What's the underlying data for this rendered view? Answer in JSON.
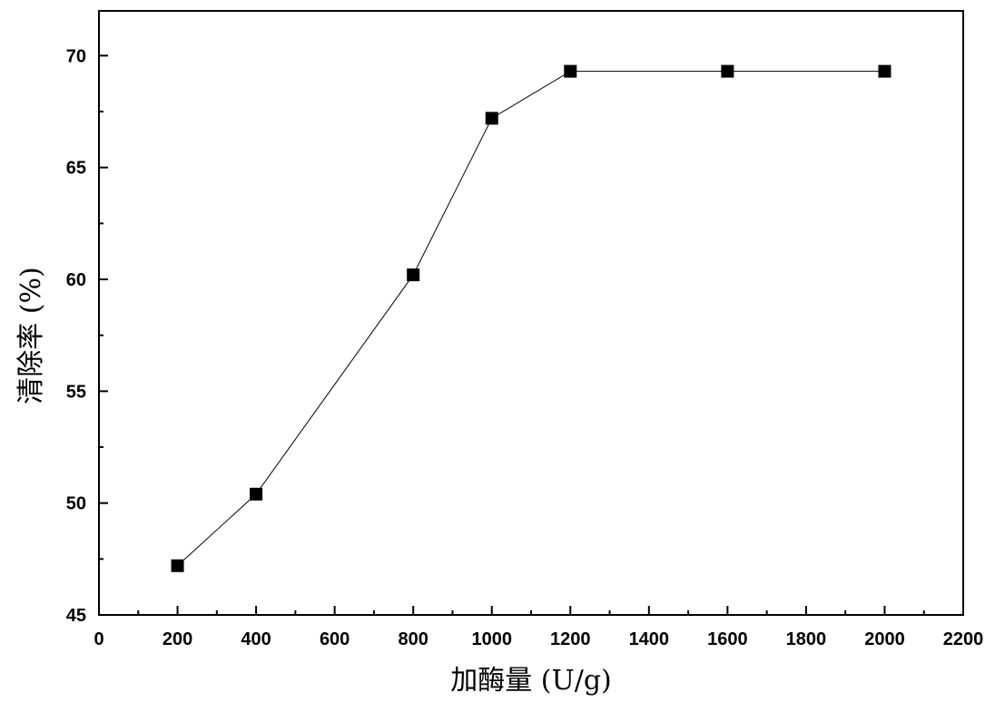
{
  "chart_data": {
    "type": "line",
    "title": "",
    "xlabel": "加酶量 (U/g)",
    "ylabel": "清除率 (%)",
    "xlim": [
      0,
      2200
    ],
    "ylim": [
      45,
      72
    ],
    "x_ticks": [
      "0",
      "200",
      "400",
      "600",
      "800",
      "1000",
      "1200",
      "1400",
      "1600",
      "1800",
      "2000",
      "2200"
    ],
    "y_ticks": [
      "45",
      "50",
      "55",
      "60",
      "65",
      "70"
    ],
    "series": [
      {
        "x": [
          200,
          400,
          800,
          1000,
          1200,
          1600,
          2000
        ],
        "y": [
          47.2,
          50.4,
          60.2,
          67.2,
          69.3,
          69.3,
          69.3
        ],
        "marker": "square",
        "color": "#000000"
      }
    ],
    "grid": false,
    "legend": "none"
  }
}
